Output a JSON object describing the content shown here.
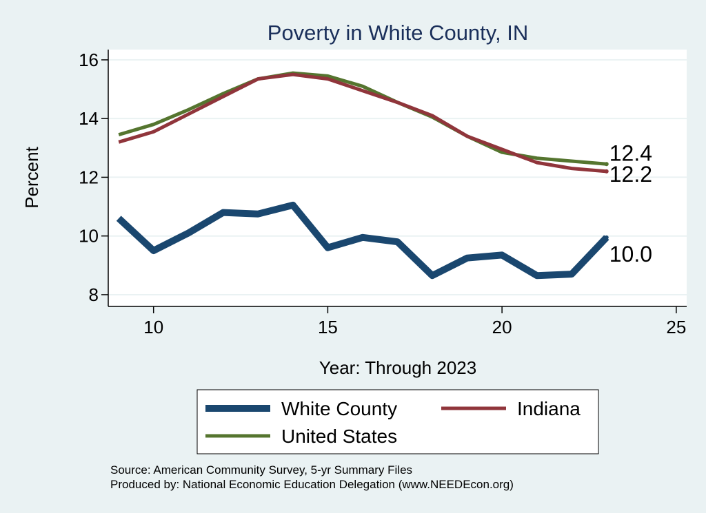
{
  "chart_data": {
    "type": "line",
    "title": "Poverty in White County, IN",
    "xlabel": "Year: Through 2023",
    "ylabel": "Percent",
    "xlim": [
      8.7,
      25.3
    ],
    "ylim": [
      7.6,
      16.35
    ],
    "x_ticks": [
      10,
      15,
      20,
      25
    ],
    "y_ticks": [
      8,
      10,
      12,
      14,
      16
    ],
    "x_tick_labels": [
      "10",
      "15",
      "20",
      "25"
    ],
    "y_tick_labels": [
      "8",
      "10",
      "12",
      "14",
      "16"
    ],
    "grid": "horizontal",
    "legend_position": "bottom",
    "x": [
      9,
      10,
      11,
      12,
      13,
      14,
      15,
      16,
      17,
      18,
      19,
      20,
      21,
      22,
      23
    ],
    "series": [
      {
        "name": "White County",
        "color": "#1a476f",
        "values": [
          10.6,
          9.5,
          10.1,
          10.8,
          10.75,
          11.05,
          9.6,
          9.95,
          9.8,
          8.65,
          9.25,
          9.35,
          8.65,
          8.7,
          9.95
        ],
        "end_label": "10.0"
      },
      {
        "name": "Indiana",
        "color": "#90353b",
        "values": [
          13.2,
          13.55,
          14.15,
          14.75,
          15.35,
          15.5,
          15.35,
          14.95,
          14.55,
          14.1,
          13.4,
          12.95,
          12.5,
          12.3,
          12.2
        ],
        "end_label": "12.2"
      },
      {
        "name": "United States",
        "color": "#55752f",
        "values": [
          13.45,
          13.8,
          14.3,
          14.85,
          15.35,
          15.55,
          15.45,
          15.1,
          14.55,
          14.05,
          13.4,
          12.85,
          12.65,
          12.55,
          12.45
        ],
        "end_label": "12.4"
      }
    ],
    "footnotes": [
      "Source: American Community Survey, 5-yr Summary Files",
      "Produced by: National Economic Education Delegation (www.NEEDEcon.org)"
    ]
  }
}
